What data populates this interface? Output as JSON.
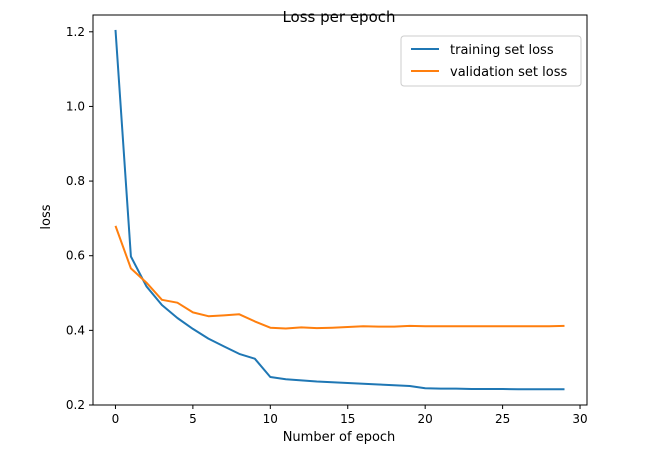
{
  "chart_data": {
    "type": "line",
    "title": "Loss per epoch",
    "xlabel": "Number of epoch",
    "ylabel": "loss",
    "xlim": [
      -1.45,
      30.45
    ],
    "ylim": [
      0.2,
      1.245
    ],
    "xticks": [
      0,
      5,
      10,
      15,
      20,
      25,
      30
    ],
    "xtick_labels": [
      "0",
      "5",
      "10",
      "15",
      "20",
      "25",
      "30"
    ],
    "yticks": [
      0.2,
      0.4,
      0.6,
      0.8,
      1.0,
      1.2
    ],
    "ytick_labels": [
      "0.2",
      "0.4",
      "0.6",
      "0.8",
      "1.0",
      "1.2"
    ],
    "grid": false,
    "legend_position": "top-right",
    "x": [
      0,
      1,
      2,
      3,
      4,
      5,
      6,
      7,
      8,
      9,
      10,
      11,
      12,
      13,
      14,
      15,
      16,
      17,
      18,
      19,
      20,
      21,
      22,
      23,
      24,
      25,
      26,
      27,
      28,
      29
    ],
    "series": [
      {
        "name": "training set loss",
        "color": "#1f77b4",
        "values": [
          1.205,
          0.598,
          0.518,
          0.468,
          0.433,
          0.404,
          0.378,
          0.357,
          0.337,
          0.324,
          0.275,
          0.269,
          0.266,
          0.263,
          0.261,
          0.259,
          0.257,
          0.255,
          0.253,
          0.251,
          0.245,
          0.244,
          0.244,
          0.243,
          0.243,
          0.243,
          0.242,
          0.242,
          0.242,
          0.242
        ]
      },
      {
        "name": "validation set loss",
        "color": "#ff7f0e",
        "values": [
          0.68,
          0.566,
          0.528,
          0.482,
          0.474,
          0.448,
          0.438,
          0.44,
          0.443,
          0.424,
          0.407,
          0.405,
          0.408,
          0.406,
          0.407,
          0.409,
          0.411,
          0.41,
          0.41,
          0.412,
          0.411,
          0.411,
          0.411,
          0.411,
          0.411,
          0.411,
          0.411,
          0.411,
          0.411,
          0.412
        ]
      }
    ]
  }
}
